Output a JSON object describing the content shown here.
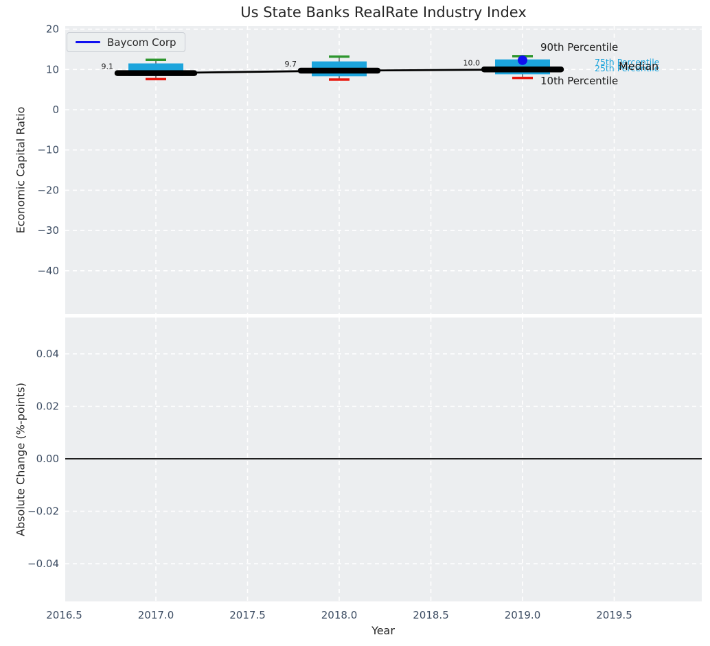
{
  "title": "Us State Banks RealRate Industry Index",
  "legend": {
    "label": "Baycom Corp",
    "line_color": "#1010f0"
  },
  "annotations": {
    "p90": "90th Percentile",
    "p75": "75th Percentile",
    "p25": "25th Percentile",
    "median": "Median",
    "p10": "10th Percentile"
  },
  "colors": {
    "plot_background": "#eceef0",
    "grid": "#ffffff",
    "tick_label": "#3d4d63",
    "box_fill": "#1ca4dc",
    "p90_cap": "#2e962e",
    "p10_cap": "#e8160c",
    "median_line": "#000000",
    "company_point": "#1010f0",
    "zero_line": "#000000"
  },
  "chart_data": [
    {
      "type": "boxplot",
      "title": "Us State Banks RealRate Industry Index",
      "xlabel": "Year",
      "ylabel": "Economic Capital Ratio",
      "grid": true,
      "legend_position": "upper left",
      "xlim": [
        2016.5,
        2019.98
      ],
      "ylim": [
        -51,
        21
      ],
      "ytick_values": [
        20,
        10,
        0,
        -10,
        -20,
        -30,
        -40
      ],
      "ytick_labels": [
        "20",
        "10",
        "0",
        "−10",
        "−20",
        "−30",
        "−40"
      ],
      "categories": [
        2017,
        2018,
        2019
      ],
      "boxes": [
        {
          "year": 2017,
          "p10": 7.6,
          "q1": 8.4,
          "median": 9.1,
          "q3": 11.5,
          "p90": 12.4
        },
        {
          "year": 2018,
          "p10": 7.5,
          "q1": 8.3,
          "median": 9.7,
          "q3": 12.0,
          "p90": 13.2
        },
        {
          "year": 2019,
          "p10": 7.9,
          "q1": 8.8,
          "median": 10.0,
          "q3": 12.5,
          "p90": 13.3
        }
      ],
      "median_line": {
        "name": "Median",
        "values": [
          9.1,
          9.7,
          10.0
        ]
      },
      "median_labels": [
        "9.1",
        "9.7",
        "10.0"
      ],
      "company_series": {
        "name": "Baycom Corp",
        "points": [
          {
            "year": 2019,
            "value": 12.3
          }
        ]
      }
    },
    {
      "type": "bar",
      "xlabel": "Year",
      "ylabel": "Absolute Change (%-points)",
      "grid": true,
      "xlim": [
        2016.5,
        2019.98
      ],
      "ylim": [
        -0.055,
        0.055
      ],
      "ytick_values": [
        0.04,
        0.02,
        0.0,
        -0.02,
        -0.04
      ],
      "ytick_labels": [
        "0.04",
        "0.02",
        "0.00",
        "−0.02",
        "−0.04"
      ],
      "categories": [
        2017,
        2018,
        2019
      ],
      "values": [],
      "zero_line": 0.0
    }
  ],
  "x_axis": {
    "label": "Year",
    "xtick_values": [
      2016.5,
      2017.0,
      2017.5,
      2018.0,
      2018.5,
      2019.0,
      2019.5
    ],
    "xtick_labels": [
      "2016.5",
      "2017.0",
      "2017.5",
      "2018.0",
      "2018.5",
      "2019.0",
      "2019.5"
    ]
  }
}
